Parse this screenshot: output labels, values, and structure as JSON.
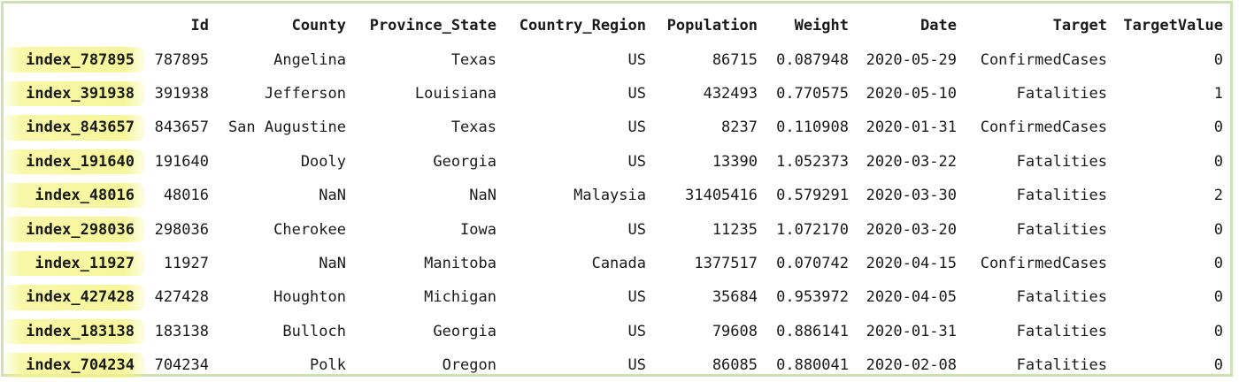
{
  "columns": [
    "Id",
    "County",
    "Province_State",
    "Country_Region",
    "Population",
    "Weight",
    "Date",
    "Target",
    "TargetValue"
  ],
  "rows": [
    {
      "index": "index_787895",
      "cells": [
        "787895",
        "Angelina",
        "Texas",
        "US",
        "86715",
        "0.087948",
        "2020-05-29",
        "ConfirmedCases",
        "0"
      ]
    },
    {
      "index": "index_391938",
      "cells": [
        "391938",
        "Jefferson",
        "Louisiana",
        "US",
        "432493",
        "0.770575",
        "2020-05-10",
        "Fatalities",
        "1"
      ]
    },
    {
      "index": "index_843657",
      "cells": [
        "843657",
        "San Augustine",
        "Texas",
        "US",
        "8237",
        "0.110908",
        "2020-01-31",
        "ConfirmedCases",
        "0"
      ]
    },
    {
      "index": "index_191640",
      "cells": [
        "191640",
        "Dooly",
        "Georgia",
        "US",
        "13390",
        "1.052373",
        "2020-03-22",
        "Fatalities",
        "0"
      ]
    },
    {
      "index": "index_48016",
      "cells": [
        "48016",
        "NaN",
        "NaN",
        "Malaysia",
        "31405416",
        "0.579291",
        "2020-03-30",
        "Fatalities",
        "2"
      ]
    },
    {
      "index": "index_298036",
      "cells": [
        "298036",
        "Cherokee",
        "Iowa",
        "US",
        "11235",
        "1.072170",
        "2020-03-20",
        "Fatalities",
        "0"
      ]
    },
    {
      "index": "index_11927",
      "cells": [
        "11927",
        "NaN",
        "Manitoba",
        "Canada",
        "1377517",
        "0.070742",
        "2020-04-15",
        "ConfirmedCases",
        "0"
      ]
    },
    {
      "index": "index_427428",
      "cells": [
        "427428",
        "Houghton",
        "Michigan",
        "US",
        "35684",
        "0.953972",
        "2020-04-05",
        "Fatalities",
        "0"
      ]
    },
    {
      "index": "index_183138",
      "cells": [
        "183138",
        "Bulloch",
        "Georgia",
        "US",
        "79608",
        "0.886141",
        "2020-01-31",
        "Fatalities",
        "0"
      ]
    },
    {
      "index": "index_704234",
      "cells": [
        "704234",
        "Polk",
        "Oregon",
        "US",
        "86085",
        "0.880041",
        "2020-02-08",
        "Fatalities",
        "0"
      ]
    }
  ],
  "colors": {
    "frame_border": "#cfe0b4",
    "highlight": "#f4f482"
  }
}
